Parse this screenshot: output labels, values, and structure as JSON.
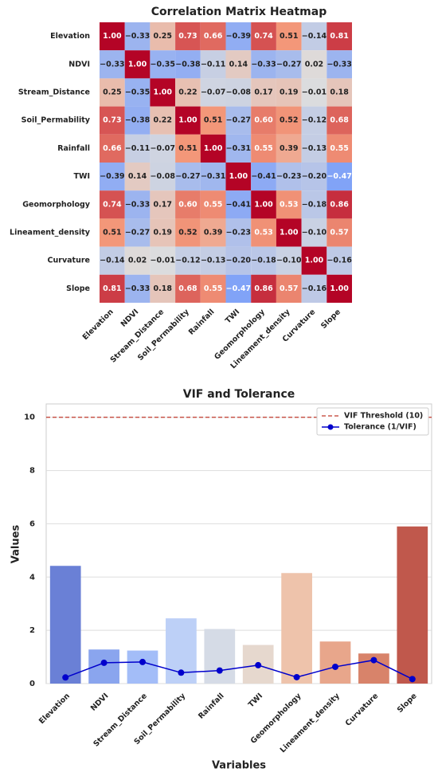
{
  "chart_data": [
    {
      "type": "heatmap",
      "title": "Correlation Matrix Heatmap",
      "categories": [
        "Elevation",
        "NDVI",
        "Stream_Distance",
        "Soil_Permability",
        "Rainfall",
        "TWI",
        "Geomorphology",
        "Lineament_density",
        "Curvature",
        "Slope"
      ],
      "values": [
        [
          1.0,
          -0.33,
          0.25,
          0.73,
          0.66,
          -0.39,
          0.74,
          0.51,
          -0.14,
          0.81
        ],
        [
          -0.33,
          1.0,
          -0.35,
          -0.38,
          -0.11,
          0.14,
          -0.33,
          -0.27,
          0.02,
          -0.33
        ],
        [
          0.25,
          -0.35,
          1.0,
          0.22,
          -0.07,
          -0.08,
          0.17,
          0.19,
          -0.01,
          0.18
        ],
        [
          0.73,
          -0.38,
          0.22,
          1.0,
          0.51,
          -0.27,
          0.6,
          0.52,
          -0.12,
          0.68
        ],
        [
          0.66,
          -0.11,
          -0.07,
          0.51,
          1.0,
          -0.31,
          0.55,
          0.39,
          -0.13,
          0.55
        ],
        [
          -0.39,
          0.14,
          -0.08,
          -0.27,
          -0.31,
          1.0,
          -0.41,
          -0.23,
          -0.2,
          -0.47
        ],
        [
          0.74,
          -0.33,
          0.17,
          0.6,
          0.55,
          -0.41,
          1.0,
          0.53,
          -0.18,
          0.86
        ],
        [
          0.51,
          -0.27,
          0.19,
          0.52,
          0.39,
          -0.23,
          0.53,
          1.0,
          -0.1,
          0.57
        ],
        [
          -0.14,
          0.02,
          -0.01,
          -0.12,
          -0.13,
          -0.2,
          -0.18,
          -0.1,
          1.0,
          -0.16
        ],
        [
          0.81,
          -0.33,
          0.18,
          0.68,
          0.55,
          -0.47,
          0.86,
          0.57,
          -0.16,
          1.0
        ]
      ],
      "value_labels": [
        [
          "1.00",
          "−0.33",
          "0.25",
          "0.73",
          "0.66",
          "−0.39",
          "0.74",
          "0.51",
          "−0.14",
          "0.81"
        ],
        [
          "−0.33",
          "1.00",
          "−0.35",
          "−0.38",
          "−0.11",
          "0.14",
          "−0.33",
          "−0.27",
          "0.02",
          "−0.33"
        ],
        [
          "0.25",
          "−0.35",
          "1.00",
          "0.22",
          "−0.07",
          "−0.08",
          "0.17",
          "0.19",
          "−0.01",
          "0.18"
        ],
        [
          "0.73",
          "−0.38",
          "0.22",
          "1.00",
          "0.51",
          "−0.27",
          "0.60",
          "0.52",
          "−0.12",
          "0.68"
        ],
        [
          "0.66",
          "−0.11",
          "−0.07",
          "0.51",
          "1.00",
          "−0.31",
          "0.55",
          "0.39",
          "−0.13",
          "0.55"
        ],
        [
          "−0.39",
          "0.14",
          "−0.08",
          "−0.27",
          "−0.31",
          "1.00",
          "−0.41",
          "−0.23",
          "−0.20",
          "−0.47"
        ],
        [
          "0.74",
          "−0.33",
          "0.17",
          "0.60",
          "0.55",
          "−0.41",
          "1.00",
          "0.53",
          "−0.18",
          "0.86"
        ],
        [
          "0.51",
          "−0.27",
          "0.19",
          "0.52",
          "0.39",
          "−0.23",
          "0.53",
          "1.00",
          "−0.10",
          "0.57"
        ],
        [
          "−0.14",
          "0.02",
          "−0.01",
          "−0.12",
          "−0.13",
          "−0.20",
          "−0.18",
          "−0.10",
          "1.00",
          "−0.16"
        ],
        [
          "0.81",
          "−0.33",
          "0.18",
          "0.68",
          "0.55",
          "−0.47",
          "0.86",
          "0.57",
          "−0.16",
          "1.00"
        ]
      ],
      "colormap": [
        "#3b4cc0",
        "#7b9ff9",
        "#dddddd",
        "#f49a7b",
        "#b40426"
      ],
      "vlim": [
        -1,
        1
      ]
    },
    {
      "type": "bar",
      "title": "VIF and Tolerance",
      "x_label": "Variables",
      "y_label": "Values",
      "categories": [
        "Elevation",
        "NDVI",
        "Stream_Distance",
        "Soil_Permability",
        "Rainfall",
        "TWI",
        "Geomorphology",
        "Lineament_density",
        "Curvature",
        "Slope"
      ],
      "values": [
        4.42,
        1.28,
        1.24,
        2.45,
        2.05,
        1.45,
        4.15,
        1.58,
        1.13,
        5.9
      ],
      "colors": [
        "#6a80d6",
        "#8aa5ee",
        "#a3bdf8",
        "#bdd0f7",
        "#d5dbe6",
        "#e6d8ce",
        "#eec3ab",
        "#e8a68b",
        "#d8836a",
        "#c0584c"
      ],
      "threshold": {
        "name": "VIF Threshold (10)",
        "value": 10,
        "color": "#c0392b"
      },
      "series": [
        {
          "name": "Tolerance (1/VIF)",
          "color": "#0000cc",
          "values": [
            0.23,
            0.78,
            0.81,
            0.41,
            0.49,
            0.69,
            0.24,
            0.63,
            0.88,
            0.17
          ]
        }
      ],
      "ylim": [
        0,
        10.5
      ],
      "yticks": [
        0,
        2,
        4,
        6,
        8,
        10
      ],
      "grid": true,
      "legend": "upper right"
    }
  ]
}
